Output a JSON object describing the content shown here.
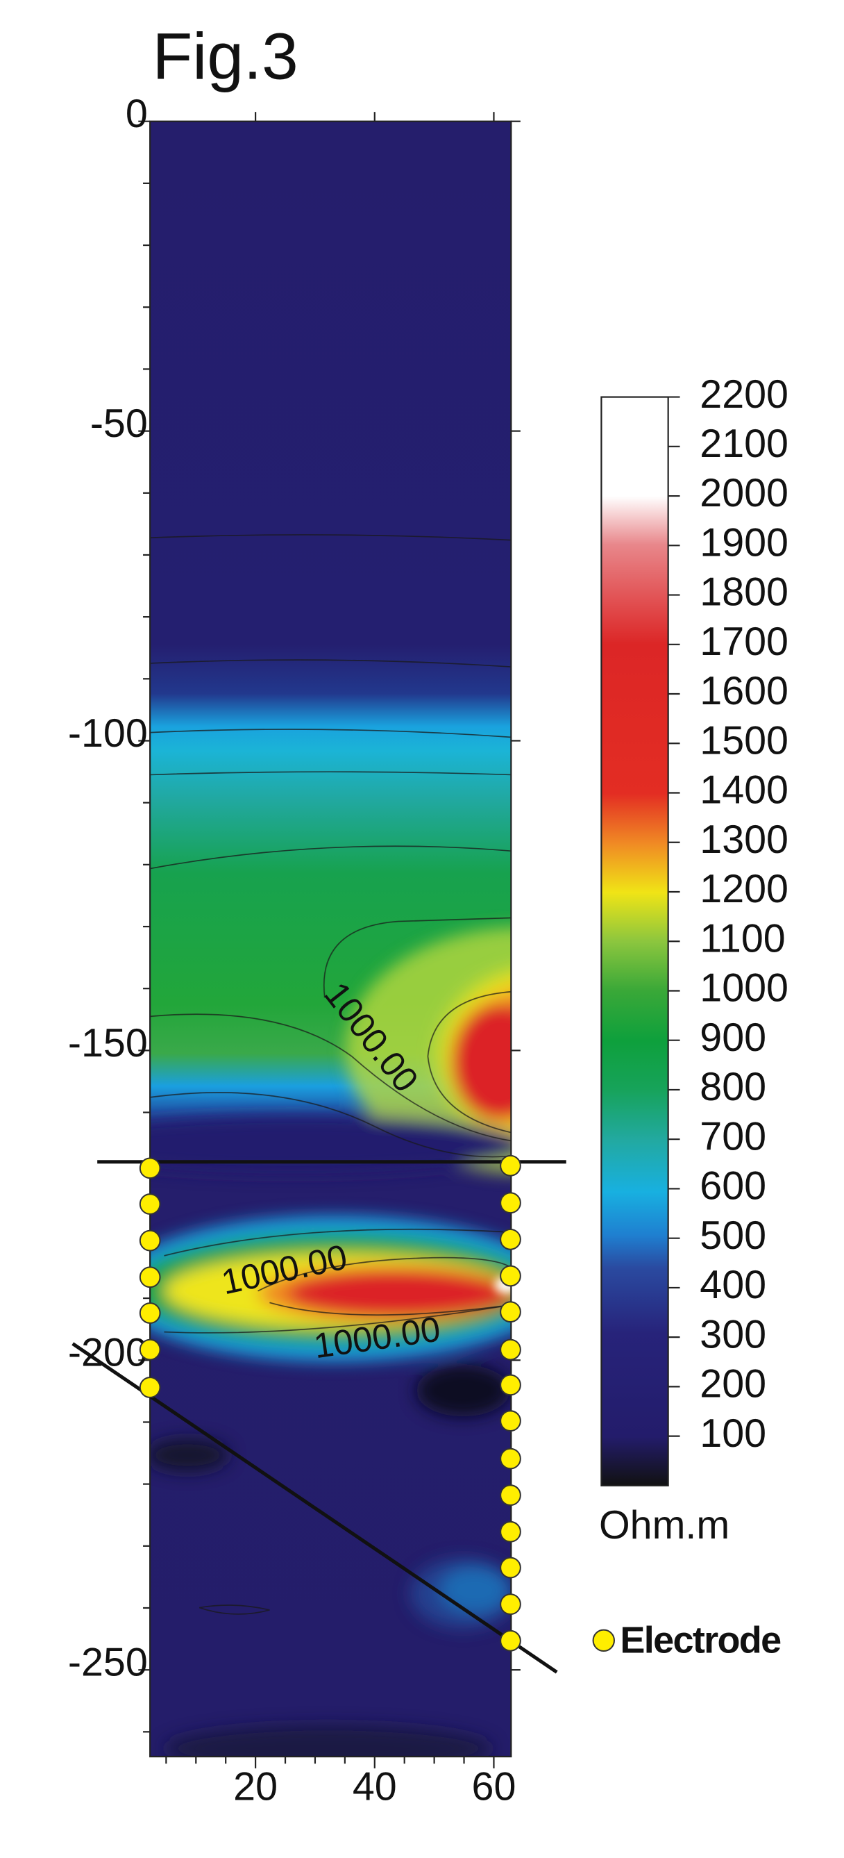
{
  "chart_data": {
    "type": "contour",
    "title": "Fig.3",
    "xlim": [
      2.3,
      62.9
    ],
    "xticks": [
      20,
      40,
      60
    ],
    "ylim": [
      -264,
      0
    ],
    "yticks": [
      0,
      -50,
      -100,
      -150,
      -200,
      -250
    ],
    "contour_labels": [
      "1000.00",
      "1000.00",
      "1000.00"
    ],
    "colorbar": {
      "label": "Ohm.m",
      "lim": [
        0,
        2200
      ],
      "ticks": [
        100,
        200,
        300,
        400,
        500,
        600,
        700,
        800,
        900,
        1000,
        1100,
        1200,
        1300,
        1400,
        1500,
        1600,
        1700,
        1800,
        1900,
        2000,
        2100,
        2200
      ]
    },
    "series": [
      {
        "name": "Electrode",
        "color": "#ffee00",
        "x": [
          2.3,
          2.3,
          2.3,
          2.3,
          2.3,
          2.3,
          2.3,
          62.8,
          62.8,
          62.8,
          62.8,
          62.8,
          62.8,
          62.8,
          62.8,
          62.8,
          62.8,
          62.8,
          62.8,
          62.8,
          62.8
        ],
        "y": [
          -169,
          -174.8,
          -180.7,
          -186.6,
          -192.4,
          -198.3,
          -204.4,
          -168.6,
          -174.6,
          -180.5,
          -186.4,
          -192.2,
          -198.3,
          -204,
          -209.8,
          -215.9,
          -221.8,
          -227.7,
          -233.5,
          -239.4,
          -245.3
        ]
      }
    ]
  }
}
